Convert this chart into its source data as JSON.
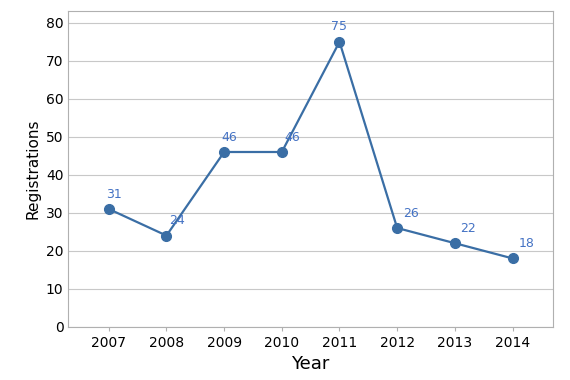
{
  "years": [
    2007,
    2008,
    2009,
    2010,
    2011,
    2012,
    2013,
    2014
  ],
  "values": [
    31,
    24,
    46,
    46,
    75,
    26,
    22,
    18
  ],
  "line_color": "#3A6EA5",
  "marker_color": "#3A6EA5",
  "xlabel": "Year",
  "ylabel": "Registrations",
  "ylim": [
    0,
    83
  ],
  "xlim": [
    2006.3,
    2014.7
  ],
  "yticks": [
    0,
    10,
    20,
    30,
    40,
    50,
    60,
    70,
    80
  ],
  "background_color": "#ffffff",
  "plot_bg_color": "#ffffff",
  "grid_color": "#c8c8c8",
  "spine_color": "#b0b0b0",
  "font_size_xlabel": 13,
  "font_size_ylabel": 11,
  "font_size_ticks": 10,
  "font_size_annotations": 9,
  "marker_size": 7,
  "line_width": 1.6,
  "annotation_color": "#4472c4"
}
